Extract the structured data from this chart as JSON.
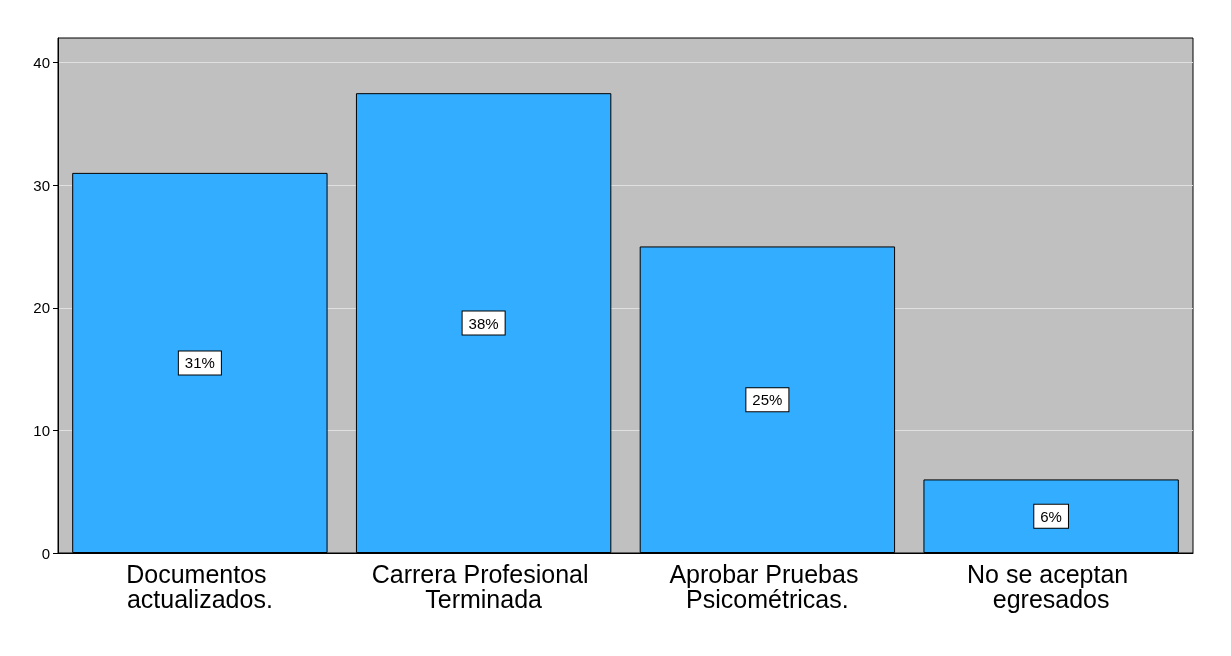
{
  "chart_data": {
    "type": "bar",
    "categories": [
      "Documentos actualizados.",
      "Carrera Profesional Terminada",
      "Aprobar Pruebas Psicométricas.",
      "No se aceptan egresados"
    ],
    "values": [
      31,
      37.5,
      25,
      6
    ],
    "value_labels": [
      "31%",
      "38%",
      "25%",
      "6%"
    ],
    "color": "#33adff",
    "ylim": [
      0,
      42
    ],
    "yticks": [
      0,
      10,
      20,
      30,
      40
    ],
    "grid": "y"
  }
}
